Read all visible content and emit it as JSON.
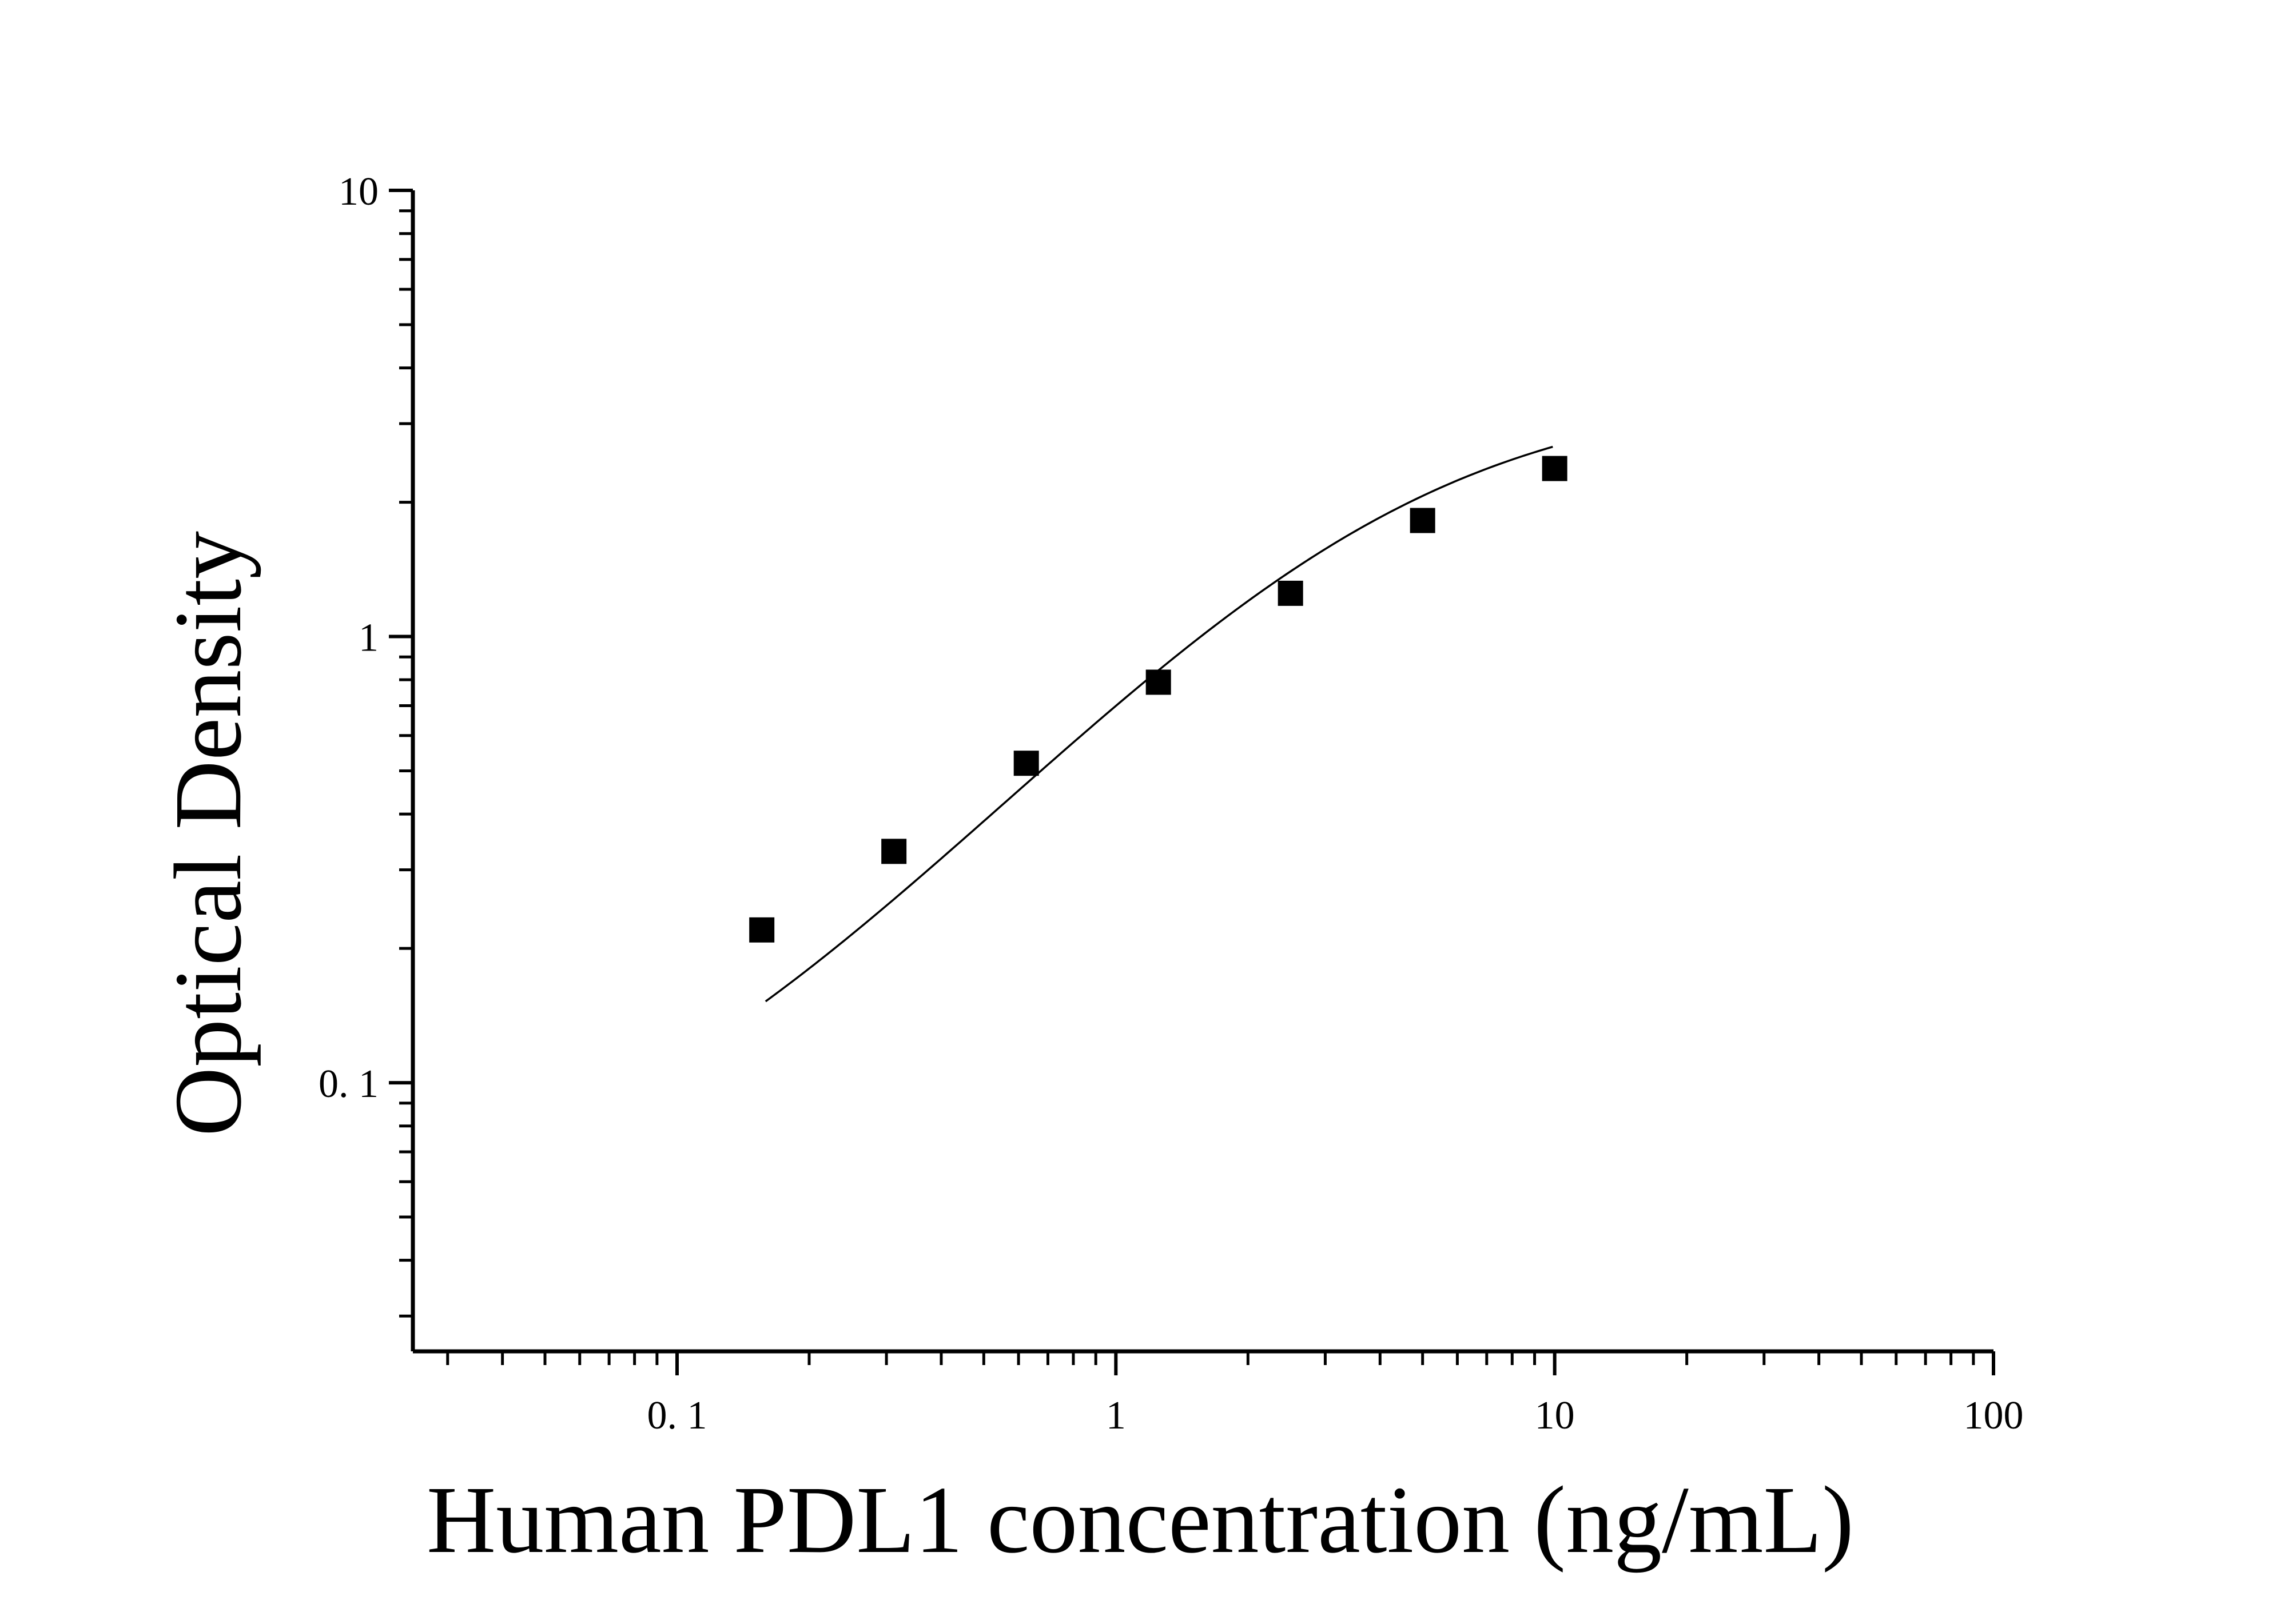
{
  "chart_data": {
    "type": "scatter",
    "title": "",
    "xlabel": "Human PDL1 concentration (ng/mL)",
    "ylabel": "Optical Density",
    "x_scale": "log",
    "y_scale": "log",
    "xlim": [
      0.025,
      100
    ],
    "ylim": [
      0.025,
      10
    ],
    "x_ticks": [
      {
        "value": 0.1,
        "label": "0. 1"
      },
      {
        "value": 1,
        "label": "1"
      },
      {
        "value": 10,
        "label": "10"
      },
      {
        "value": 100,
        "label": "100"
      }
    ],
    "y_ticks": [
      {
        "value": 0.1,
        "label": "0. 1"
      },
      {
        "value": 1,
        "label": "1"
      },
      {
        "value": 10,
        "label": "10"
      }
    ],
    "grid": false,
    "legend": "none",
    "marker": "square",
    "colors": {
      "marker": "#000000",
      "curve": "#000000",
      "axis": "#000000"
    },
    "series": [
      {
        "name": "",
        "x": [
          0.156,
          0.312,
          0.625,
          1.25,
          2.5,
          5,
          10
        ],
        "y": [
          0.22,
          0.33,
          0.52,
          0.79,
          1.25,
          1.82,
          2.38
        ]
      }
    ],
    "fit": {
      "type": "4PL",
      "A": 0.05,
      "B": 1.1,
      "C": 3.9,
      "D": 3.6
    }
  }
}
